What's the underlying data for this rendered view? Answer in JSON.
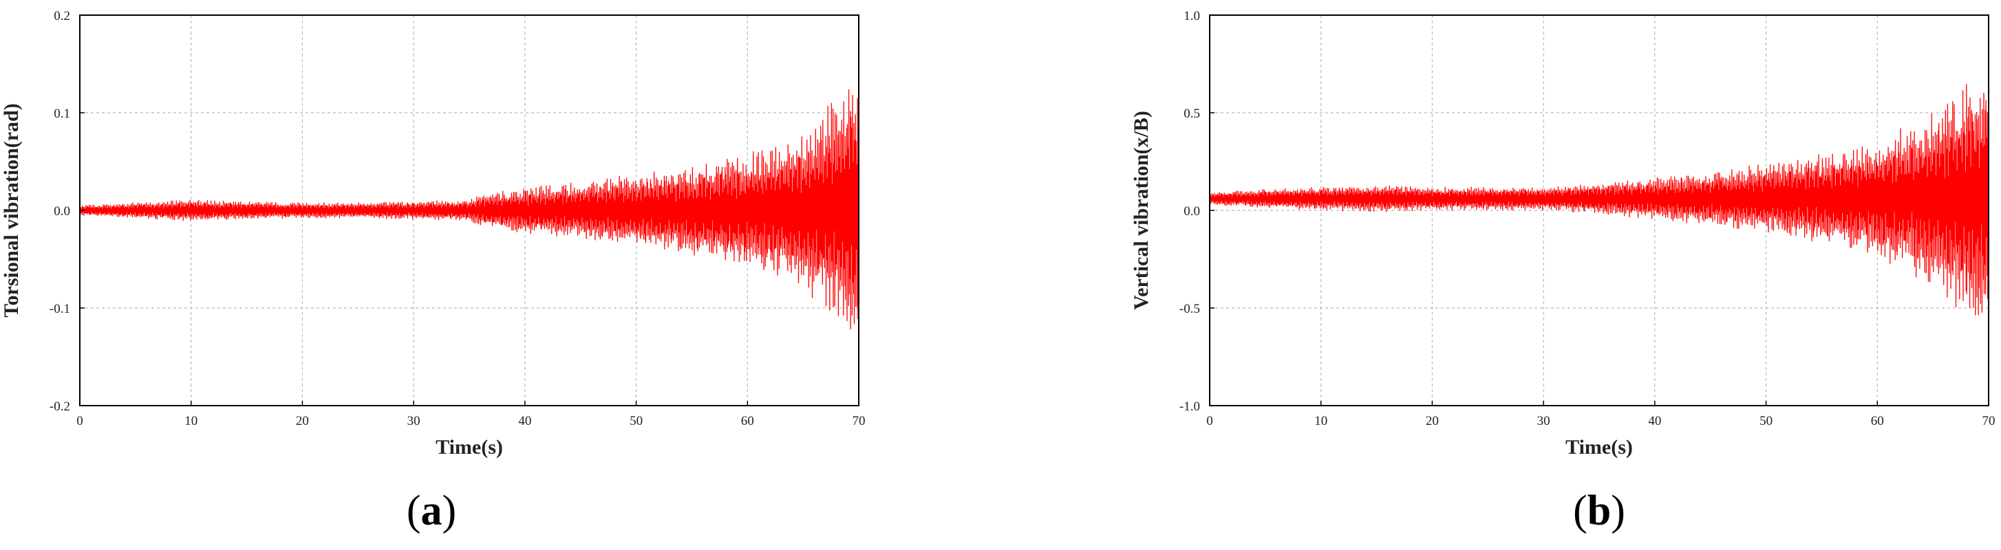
{
  "chart_data": [
    {
      "type": "line",
      "panel_label": "a",
      "xlabel": "Time(s)",
      "ylabel": "Torsional vibration(rad)",
      "xlim": [
        0,
        70
      ],
      "ylim": [
        -0.2,
        0.2
      ],
      "xticks": [
        0,
        10,
        20,
        30,
        40,
        50,
        60,
        70
      ],
      "yticks": [
        -0.2,
        -0.1,
        0.0,
        0.1,
        0.2
      ],
      "ytick_labels": [
        "-0.2",
        "-0.1",
        "0.0",
        "0.1",
        "0.2"
      ],
      "grid": true,
      "line_color": "#ff0000",
      "center": 0.0,
      "envelope": {
        "t": [
          0,
          5,
          10,
          15,
          20,
          25,
          30,
          35,
          36,
          40,
          45,
          50,
          55,
          60,
          62,
          65,
          67,
          69,
          70
        ],
        "amplitude": [
          0.005,
          0.008,
          0.011,
          0.009,
          0.008,
          0.008,
          0.009,
          0.011,
          0.017,
          0.024,
          0.03,
          0.038,
          0.047,
          0.059,
          0.066,
          0.083,
          0.105,
          0.13,
          0.145
        ]
      }
    },
    {
      "type": "line",
      "panel_label": "b",
      "xlabel": "Time(s)",
      "ylabel": "Vertical vibration(x/B)",
      "xlim": [
        0,
        70
      ],
      "ylim": [
        -1.0,
        1.0
      ],
      "xticks": [
        0,
        10,
        20,
        30,
        40,
        50,
        60,
        70
      ],
      "yticks": [
        -1.0,
        -0.5,
        0.0,
        0.5,
        1.0
      ],
      "ytick_labels": [
        "-1.0",
        "-0.5",
        "0.0",
        "0.5",
        "1.0"
      ],
      "grid": true,
      "line_color": "#ff0000",
      "center": 0.06,
      "envelope": {
        "t": [
          0,
          5,
          10,
          15,
          20,
          25,
          30,
          35,
          40,
          45,
          50,
          55,
          60,
          65,
          68,
          70
        ],
        "amplitude": [
          0.03,
          0.05,
          0.06,
          0.07,
          0.06,
          0.06,
          0.06,
          0.08,
          0.11,
          0.14,
          0.18,
          0.23,
          0.3,
          0.45,
          0.62,
          0.75
        ]
      }
    }
  ]
}
